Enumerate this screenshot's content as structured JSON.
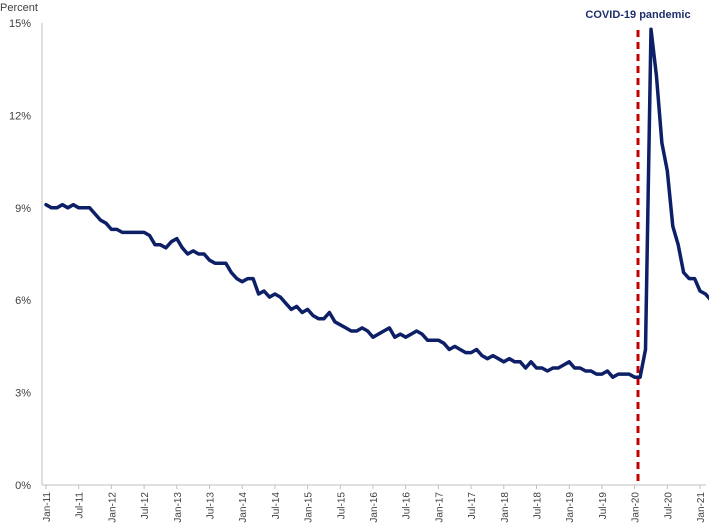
{
  "chart_data": {
    "type": "line",
    "title": "",
    "xlabel": "",
    "ylabel": "Percent",
    "ylim": [
      0,
      15
    ],
    "y_ticks": [
      "0%",
      "3%",
      "6%",
      "9%",
      "12%",
      "15%"
    ],
    "x_tick_labels": [
      "Jan-11",
      "Jul-11",
      "Jan-12",
      "Jul-12",
      "Jan-13",
      "Jul-13",
      "Jan-14",
      "Jul-14",
      "Jan-15",
      "Jul-15",
      "Jan-16",
      "Jul-16",
      "Jan-17",
      "Jul-17",
      "Jan-18",
      "Jul-18",
      "Jan-19",
      "Jul-19",
      "Jan-20",
      "Jul-20",
      "Jan-21"
    ],
    "grid": false,
    "line_color": "#0d1f66",
    "annotation": {
      "label": "COVID-19 pandemic",
      "x": "Mar-20",
      "color": "#c00000"
    },
    "series": [
      {
        "name": "",
        "start": "Jan-11",
        "frequency": "monthly",
        "values": [
          9.1,
          9.0,
          9.0,
          9.1,
          9.0,
          9.1,
          9.0,
          9.0,
          9.0,
          8.8,
          8.6,
          8.5,
          8.3,
          8.3,
          8.2,
          8.2,
          8.2,
          8.2,
          8.2,
          8.1,
          7.8,
          7.8,
          7.7,
          7.9,
          8.0,
          7.7,
          7.5,
          7.6,
          7.5,
          7.5,
          7.3,
          7.2,
          7.2,
          7.2,
          6.9,
          6.7,
          6.6,
          6.7,
          6.7,
          6.2,
          6.3,
          6.1,
          6.2,
          6.1,
          5.9,
          5.7,
          5.8,
          5.6,
          5.7,
          5.5,
          5.4,
          5.4,
          5.6,
          5.3,
          5.2,
          5.1,
          5.0,
          5.0,
          5.1,
          5.0,
          4.8,
          4.9,
          5.0,
          5.1,
          4.8,
          4.9,
          4.8,
          4.9,
          5.0,
          4.9,
          4.7,
          4.7,
          4.7,
          4.6,
          4.4,
          4.5,
          4.4,
          4.3,
          4.3,
          4.4,
          4.2,
          4.1,
          4.2,
          4.1,
          4.0,
          4.1,
          4.0,
          4.0,
          3.8,
          4.0,
          3.8,
          3.8,
          3.7,
          3.8,
          3.8,
          3.9,
          4.0,
          3.8,
          3.8,
          3.7,
          3.7,
          3.6,
          3.6,
          3.7,
          3.5,
          3.6,
          3.6,
          3.6,
          3.5,
          3.5,
          4.4,
          14.8,
          13.3,
          11.1,
          10.2,
          8.4,
          7.8,
          6.9,
          6.7,
          6.7,
          6.3,
          6.2,
          6.0
        ]
      }
    ]
  }
}
